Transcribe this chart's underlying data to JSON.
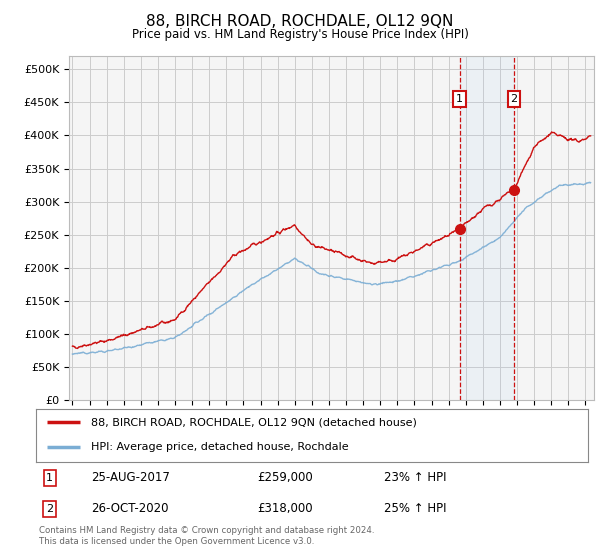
{
  "title": "88, BIRCH ROAD, ROCHDALE, OL12 9QN",
  "subtitle": "Price paid vs. HM Land Registry's House Price Index (HPI)",
  "ylabel_ticks": [
    "£0",
    "£50K",
    "£100K",
    "£150K",
    "£200K",
    "£250K",
    "£300K",
    "£350K",
    "£400K",
    "£450K",
    "£500K"
  ],
  "ytick_values": [
    0,
    50000,
    100000,
    150000,
    200000,
    250000,
    300000,
    350000,
    400000,
    450000,
    500000
  ],
  "ylim": [
    0,
    520000
  ],
  "xlim_start": 1994.8,
  "xlim_end": 2025.5,
  "hpi_color": "#7aadd4",
  "price_color": "#cc1111",
  "marker1_x": 2017.65,
  "marker1_y": 259000,
  "marker2_x": 2020.82,
  "marker2_y": 318000,
  "marker1_label": "25-AUG-2017",
  "marker1_price": "£259,000",
  "marker1_hpi": "23% ↑ HPI",
  "marker2_label": "26-OCT-2020",
  "marker2_price": "£318,000",
  "marker2_hpi": "25% ↑ HPI",
  "legend_line1": "88, BIRCH ROAD, ROCHDALE, OL12 9QN (detached house)",
  "legend_line2": "HPI: Average price, detached house, Rochdale",
  "footnote": "Contains HM Land Registry data © Crown copyright and database right 2024.\nThis data is licensed under the Open Government Licence v3.0.",
  "background_color": "#ffffff",
  "grid_color": "#cccccc",
  "chart_bg": "#f5f5f5"
}
